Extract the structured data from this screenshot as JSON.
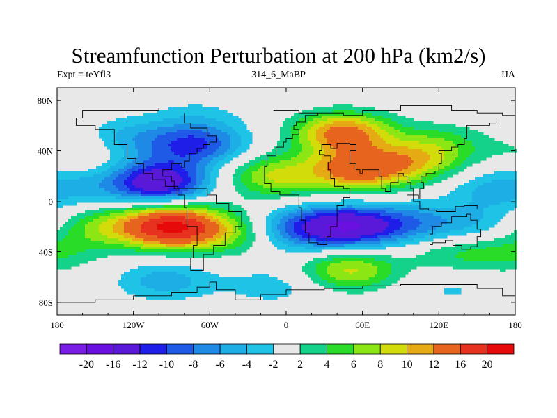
{
  "chart_data": {
    "type": "heatmap",
    "title": "Streamfunction Perturbation at 200 hPa (km2/s)",
    "left_label": "Expt = teYfl3",
    "center_label": "314_6_MaBP",
    "right_label": "JJA",
    "x_range": [
      -180,
      180
    ],
    "y_range": [
      -90,
      90
    ],
    "x_ticks": [
      {
        "value": -180,
        "label": "180"
      },
      {
        "value": -120,
        "label": "120W"
      },
      {
        "value": -60,
        "label": "60W"
      },
      {
        "value": 0,
        "label": "0"
      },
      {
        "value": 60,
        "label": "60E"
      },
      {
        "value": 120,
        "label": "120E"
      },
      {
        "value": 180,
        "label": "180"
      }
    ],
    "y_ticks": [
      {
        "value": 80,
        "label": "80N"
      },
      {
        "value": 40,
        "label": "40N"
      },
      {
        "value": 0,
        "label": "0"
      },
      {
        "value": -40,
        "label": "40S"
      },
      {
        "value": -80,
        "label": "80S"
      }
    ],
    "colorbar": {
      "labels": [
        "-20",
        "-16",
        "-12",
        "-10",
        "-8",
        "-6",
        "-4",
        "-2",
        "2",
        "4",
        "6",
        "8",
        "10",
        "12",
        "16",
        "20"
      ],
      "levels": [
        -20,
        -16,
        -12,
        -10,
        -8,
        -6,
        -4,
        -2,
        2,
        4,
        6,
        8,
        10,
        12,
        16,
        20
      ],
      "colors": [
        "#7a1ee6",
        "#6a10e0",
        "#5a18d8",
        "#1e1ee8",
        "#1e5ae6",
        "#1e8ae6",
        "#1eaee6",
        "#1ec3e6",
        "#e8e8e8",
        "#14d28a",
        "#28dc28",
        "#8ce614",
        "#d2dc0a",
        "#e6aa14",
        "#e6641e",
        "#e6321e",
        "#e60a0a"
      ]
    },
    "anomaly_centers": [
      {
        "lon": -100,
        "lat": 15,
        "value": -15
      },
      {
        "lon": -70,
        "lat": 45,
        "value": -10
      },
      {
        "lon": -125,
        "lat": 50,
        "value": -5
      },
      {
        "lon": -70,
        "lat": 70,
        "value": -3
      },
      {
        "lon": -90,
        "lat": -20,
        "value": 20
      },
      {
        "lon": -145,
        "lat": -20,
        "value": 6
      },
      {
        "lon": -40,
        "lat": -25,
        "value": 6
      },
      {
        "lon": 50,
        "lat": -20,
        "value": -14
      },
      {
        "lon": 5,
        "lat": -22,
        "value": -8
      },
      {
        "lon": 100,
        "lat": -18,
        "value": -6
      },
      {
        "lon": 150,
        "lat": -20,
        "value": -4
      },
      {
        "lon": 45,
        "lat": 55,
        "value": 14
      },
      {
        "lon": 55,
        "lat": 25,
        "value": 13
      },
      {
        "lon": -10,
        "lat": 20,
        "value": 8
      },
      {
        "lon": 100,
        "lat": 30,
        "value": 7
      },
      {
        "lon": 120,
        "lat": 45,
        "value": 5
      },
      {
        "lon": 50,
        "lat": -55,
        "value": 9
      },
      {
        "lon": 130,
        "lat": -40,
        "value": 4
      },
      {
        "lon": 175,
        "lat": -40,
        "value": 4
      },
      {
        "lon": -160,
        "lat": 40,
        "value": 3
      },
      {
        "lon": 160,
        "lat": 10,
        "value": -4
      },
      {
        "lon": -95,
        "lat": -65,
        "value": -6
      },
      {
        "lon": -10,
        "lat": -70,
        "value": -4
      },
      {
        "lon": 130,
        "lat": -72,
        "value": -3
      },
      {
        "lon": -160,
        "lat": 10,
        "value": -3
      }
    ]
  }
}
